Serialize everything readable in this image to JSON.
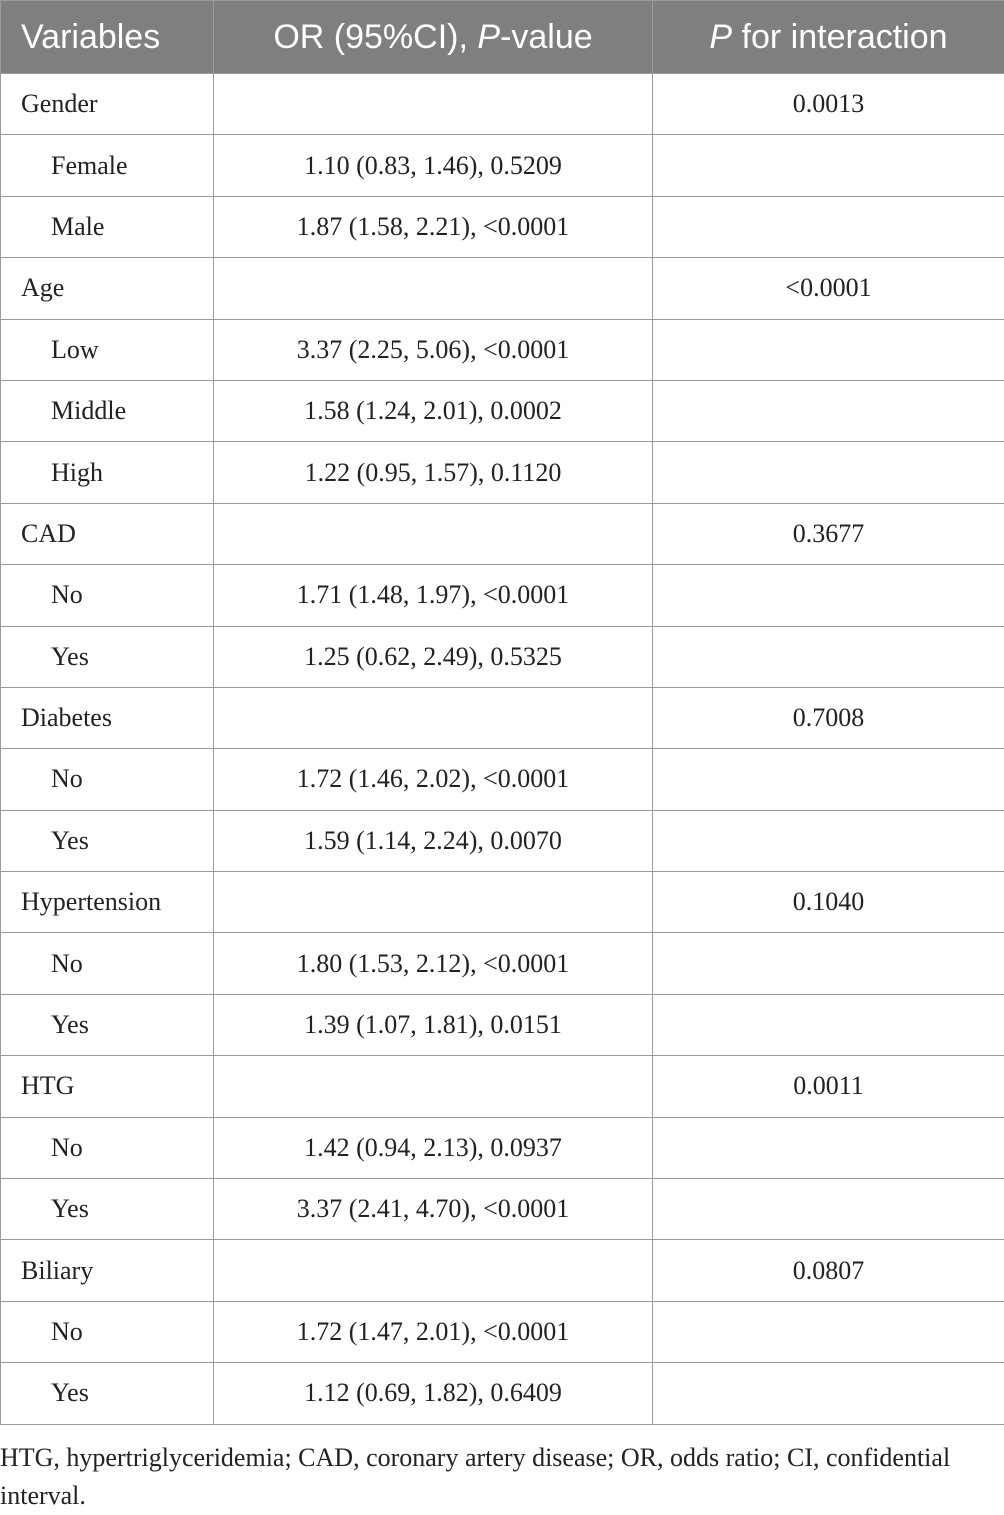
{
  "header": [
    [
      "Variables"
    ],
    [
      "OR (95%CI), ",
      "P",
      "-value"
    ],
    [
      "P",
      " for interaction"
    ]
  ],
  "groups": [
    {
      "name": "Gender",
      "p_interaction": "0.0013",
      "subgroups": [
        {
          "name": "Female",
          "or": "1.10 (0.83, 1.46), 0.5209"
        },
        {
          "name": "Male",
          "or": "1.87 (1.58, 2.21), <0.0001"
        }
      ]
    },
    {
      "name": "Age",
      "p_interaction": "<0.0001",
      "subgroups": [
        {
          "name": "Low",
          "or": "3.37 (2.25, 5.06), <0.0001"
        },
        {
          "name": "Middle",
          "or": "1.58 (1.24, 2.01), 0.0002"
        },
        {
          "name": "High",
          "or": "1.22 (0.95, 1.57), 0.1120"
        }
      ]
    },
    {
      "name": "CAD",
      "p_interaction": "0.3677",
      "subgroups": [
        {
          "name": "No",
          "or": "1.71 (1.48, 1.97), <0.0001"
        },
        {
          "name": "Yes",
          "or": "1.25 (0.62, 2.49), 0.5325"
        }
      ]
    },
    {
      "name": "Diabetes",
      "p_interaction": "0.7008",
      "subgroups": [
        {
          "name": "No",
          "or": "1.72 (1.46, 2.02), <0.0001"
        },
        {
          "name": "Yes",
          "or": "1.59 (1.14, 2.24), 0.0070"
        }
      ]
    },
    {
      "name": "Hypertension",
      "p_interaction": "0.1040",
      "subgroups": [
        {
          "name": "No",
          "or": "1.80 (1.53, 2.12), <0.0001"
        },
        {
          "name": "Yes",
          "or": "1.39 (1.07, 1.81), 0.0151"
        }
      ]
    },
    {
      "name": "HTG",
      "p_interaction": "0.0011",
      "subgroups": [
        {
          "name": "No",
          "or": "1.42 (0.94, 2.13), 0.0937"
        },
        {
          "name": "Yes",
          "or": "3.37 (2.41, 4.70), <0.0001"
        }
      ]
    },
    {
      "name": "Biliary",
      "p_interaction": "0.0807",
      "subgroups": [
        {
          "name": "No",
          "or": "1.72 (1.47, 2.01), <0.0001"
        },
        {
          "name": "Yes",
          "or": "1.12 (0.69, 1.82), 0.6409"
        }
      ]
    }
  ],
  "footnote": "HTG, hypertriglyceridemia; CAD, coronary artery disease; OR, odds ratio; CI, confidential interval."
}
